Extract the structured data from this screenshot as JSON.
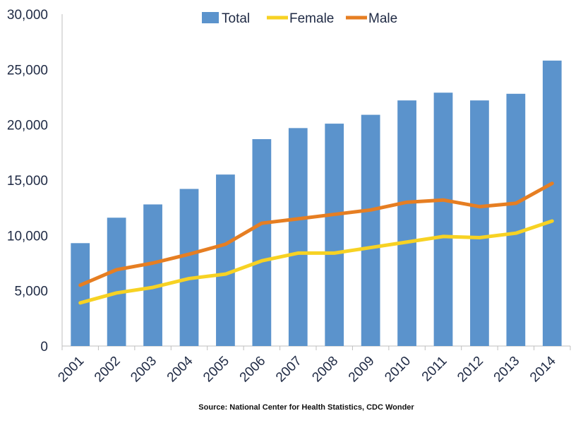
{
  "chart_data": {
    "type": "bar",
    "title": "",
    "xlabel": "",
    "ylabel": "",
    "categories": [
      "2001",
      "2002",
      "2003",
      "2004",
      "2005",
      "2006",
      "2007",
      "2008",
      "2009",
      "2010",
      "2011",
      "2012",
      "2013",
      "2014"
    ],
    "ylim": [
      0,
      30000
    ],
    "yticks": [
      0,
      5000,
      10000,
      15000,
      20000,
      25000,
      30000
    ],
    "ytick_labels": [
      "0",
      "5,000",
      "10,000",
      "15,000",
      "20,000",
      "25,000",
      "30,000"
    ],
    "series": [
      {
        "name": "Total",
        "type": "bar",
        "color": "#5b93cc",
        "values": [
          9300,
          11600,
          12800,
          14200,
          15500,
          18700,
          19700,
          20100,
          20900,
          22200,
          22900,
          22200,
          22800,
          25800
        ]
      },
      {
        "name": "Female",
        "type": "line",
        "color": "#f7d223",
        "values": [
          3900,
          4800,
          5300,
          6100,
          6500,
          7700,
          8400,
          8400,
          8900,
          9400,
          9900,
          9800,
          10200,
          11300
        ]
      },
      {
        "name": "Male",
        "type": "line",
        "color": "#e67e22",
        "values": [
          5500,
          6900,
          7500,
          8300,
          9200,
          11100,
          11500,
          11900,
          12300,
          13000,
          13200,
          12600,
          12900,
          14700
        ]
      }
    ],
    "legend": {
      "position": "top-center"
    },
    "grid": false
  },
  "source": "Source: National Center for Health Statistics, CDC Wonder"
}
